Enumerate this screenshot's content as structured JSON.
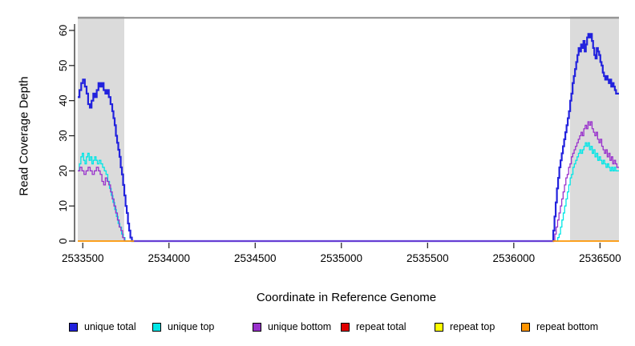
{
  "chart_data": {
    "type": "line",
    "title": "",
    "xlabel": "Coordinate in Reference Genome",
    "ylabel": "Read Coverage Depth",
    "xlim": [
      2533471,
      2536610
    ],
    "ylim": [
      0,
      64
    ],
    "x_ticks": [
      2533500,
      2534000,
      2534500,
      2535000,
      2535500,
      2536000,
      2536500
    ],
    "y_ticks": [
      0,
      10,
      20,
      30,
      40,
      50,
      60
    ],
    "grid": "off",
    "legend_position": "bottom",
    "shaded_regions": {
      "color": "#DBDBDB",
      "y_top_value": 64,
      "regions": [
        {
          "x0": 2533471,
          "x1": 2533741
        },
        {
          "x0": 2536327,
          "x1": 2536610
        }
      ]
    },
    "boundary_line": {
      "y_value": 63.6,
      "color": "#8C8C8C",
      "width": 2
    },
    "series": [
      {
        "name": "unique total",
        "color": "#2222DD",
        "width": 2.2,
        "segments": [
          [
            [
              2533471,
              41
            ],
            [
              2533481,
              43
            ],
            [
              2533491,
              45
            ],
            [
              2533501,
              46
            ],
            [
              2533512,
              44
            ],
            [
              2533522,
              42
            ],
            [
              2533531,
              39
            ],
            [
              2533541,
              38
            ],
            [
              2533551,
              40
            ],
            [
              2533561,
              42
            ],
            [
              2533571,
              41
            ],
            [
              2533581,
              43
            ],
            [
              2533591,
              45
            ],
            [
              2533601,
              44
            ],
            [
              2533611,
              45
            ],
            [
              2533621,
              43
            ],
            [
              2533631,
              42
            ],
            [
              2533641,
              43
            ],
            [
              2533651,
              41
            ],
            [
              2533661,
              39
            ],
            [
              2533671,
              37
            ],
            [
              2533678,
              35
            ],
            [
              2533685,
              33
            ],
            [
              2533692,
              30
            ],
            [
              2533699,
              28
            ],
            [
              2533706,
              26
            ],
            [
              2533713,
              24
            ],
            [
              2533720,
              21
            ],
            [
              2533727,
              19
            ],
            [
              2533734,
              16
            ],
            [
              2533741,
              13
            ],
            [
              2533748,
              10
            ],
            [
              2533755,
              8
            ],
            [
              2533762,
              5
            ],
            [
              2533769,
              3
            ],
            [
              2533776,
              1
            ],
            [
              2533785,
              0
            ],
            [
              2536226,
              0
            ],
            [
              2536229,
              3
            ],
            [
              2536236,
              7
            ],
            [
              2536243,
              11
            ],
            [
              2536250,
              15
            ],
            [
              2536257,
              18
            ],
            [
              2536264,
              21
            ],
            [
              2536271,
              23
            ],
            [
              2536278,
              25
            ],
            [
              2536285,
              27
            ],
            [
              2536292,
              29
            ],
            [
              2536299,
              31
            ],
            [
              2536306,
              33
            ],
            [
              2536313,
              35
            ],
            [
              2536320,
              37
            ],
            [
              2536327,
              40
            ],
            [
              2536334,
              42
            ],
            [
              2536341,
              45
            ],
            [
              2536348,
              47
            ],
            [
              2536355,
              49
            ],
            [
              2536362,
              51
            ],
            [
              2536369,
              53
            ],
            [
              2536376,
              55
            ],
            [
              2536383,
              54
            ],
            [
              2536390,
              56
            ],
            [
              2536397,
              55
            ],
            [
              2536404,
              57
            ],
            [
              2536411,
              54
            ],
            [
              2536418,
              56
            ],
            [
              2536425,
              58
            ],
            [
              2536432,
              59
            ],
            [
              2536439,
              58
            ],
            [
              2536446,
              59
            ],
            [
              2536453,
              57
            ],
            [
              2536460,
              55
            ],
            [
              2536467,
              53
            ],
            [
              2536474,
              52
            ],
            [
              2536481,
              55
            ],
            [
              2536488,
              54
            ],
            [
              2536495,
              53
            ],
            [
              2536502,
              51
            ],
            [
              2536509,
              50
            ],
            [
              2536516,
              48
            ],
            [
              2536523,
              47
            ],
            [
              2536530,
              46
            ],
            [
              2536537,
              47
            ],
            [
              2536544,
              46
            ],
            [
              2536551,
              45
            ],
            [
              2536558,
              46
            ],
            [
              2536565,
              44
            ],
            [
              2536572,
              45
            ],
            [
              2536579,
              44
            ],
            [
              2536586,
              43
            ],
            [
              2536593,
              42
            ],
            [
              2536610,
              42
            ]
          ]
        ]
      },
      {
        "name": "unique top",
        "color": "#00E6E6",
        "width": 1.3,
        "segments": [
          [
            [
              2533471,
              20
            ],
            [
              2533481,
              22
            ],
            [
              2533489,
              24
            ],
            [
              2533497,
              25
            ],
            [
              2533505,
              23
            ],
            [
              2533513,
              22
            ],
            [
              2533521,
              24
            ],
            [
              2533529,
              25
            ],
            [
              2533537,
              23
            ],
            [
              2533545,
              24
            ],
            [
              2533553,
              22
            ],
            [
              2533561,
              23
            ],
            [
              2533569,
              24
            ],
            [
              2533577,
              23
            ],
            [
              2533585,
              22
            ],
            [
              2533595,
              23
            ],
            [
              2533605,
              22
            ],
            [
              2533615,
              21
            ],
            [
              2533625,
              20
            ],
            [
              2533635,
              19
            ],
            [
              2533645,
              17
            ],
            [
              2533655,
              15
            ],
            [
              2533665,
              13
            ],
            [
              2533675,
              11
            ],
            [
              2533685,
              9
            ],
            [
              2533695,
              7
            ],
            [
              2533705,
              5
            ],
            [
              2533715,
              4
            ],
            [
              2533725,
              2
            ],
            [
              2533735,
              1
            ],
            [
              2533745,
              0
            ],
            [
              2536248,
              0
            ],
            [
              2536255,
              1
            ],
            [
              2536263,
              2
            ],
            [
              2536271,
              4
            ],
            [
              2536279,
              6
            ],
            [
              2536287,
              8
            ],
            [
              2536295,
              10
            ],
            [
              2536303,
              12
            ],
            [
              2536311,
              14
            ],
            [
              2536319,
              16
            ],
            [
              2536327,
              18
            ],
            [
              2536335,
              19
            ],
            [
              2536343,
              21
            ],
            [
              2536351,
              22
            ],
            [
              2536359,
              23
            ],
            [
              2536367,
              24
            ],
            [
              2536375,
              25
            ],
            [
              2536383,
              26
            ],
            [
              2536391,
              25
            ],
            [
              2536399,
              26
            ],
            [
              2536407,
              27
            ],
            [
              2536415,
              28
            ],
            [
              2536423,
              27
            ],
            [
              2536431,
              28
            ],
            [
              2536439,
              26
            ],
            [
              2536447,
              27
            ],
            [
              2536455,
              25
            ],
            [
              2536463,
              26
            ],
            [
              2536471,
              24
            ],
            [
              2536479,
              25
            ],
            [
              2536487,
              23
            ],
            [
              2536495,
              24
            ],
            [
              2536503,
              23
            ],
            [
              2536511,
              22
            ],
            [
              2536519,
              23
            ],
            [
              2536527,
              22
            ],
            [
              2536535,
              21
            ],
            [
              2536543,
              22
            ],
            [
              2536551,
              21
            ],
            [
              2536559,
              20
            ],
            [
              2536567,
              21
            ],
            [
              2536575,
              20
            ],
            [
              2536583,
              21
            ],
            [
              2536591,
              20
            ],
            [
              2536610,
              20
            ]
          ]
        ]
      },
      {
        "name": "unique bottom",
        "color": "#9932CC",
        "width": 1.3,
        "segments": [
          [
            [
              2533471,
              20
            ],
            [
              2533483,
              21
            ],
            [
              2533495,
              20
            ],
            [
              2533507,
              19
            ],
            [
              2533519,
              20
            ],
            [
              2533531,
              21
            ],
            [
              2533543,
              20
            ],
            [
              2533555,
              19
            ],
            [
              2533567,
              20
            ],
            [
              2533579,
              21
            ],
            [
              2533591,
              20
            ],
            [
              2533601,
              19
            ],
            [
              2533611,
              17
            ],
            [
              2533621,
              16
            ],
            [
              2533631,
              18
            ],
            [
              2533641,
              17
            ],
            [
              2533651,
              16
            ],
            [
              2533661,
              14
            ],
            [
              2533671,
              12
            ],
            [
              2533681,
              10
            ],
            [
              2533691,
              8
            ],
            [
              2533701,
              6
            ],
            [
              2533711,
              4
            ],
            [
              2533721,
              3
            ],
            [
              2533731,
              1
            ],
            [
              2533741,
              0
            ],
            [
              2536230,
              0
            ],
            [
              2536238,
              2
            ],
            [
              2536246,
              4
            ],
            [
              2536254,
              6
            ],
            [
              2536262,
              8
            ],
            [
              2536270,
              10
            ],
            [
              2536278,
              12
            ],
            [
              2536286,
              14
            ],
            [
              2536294,
              16
            ],
            [
              2536302,
              18
            ],
            [
              2536310,
              19
            ],
            [
              2536318,
              21
            ],
            [
              2536326,
              22
            ],
            [
              2536334,
              24
            ],
            [
              2536342,
              25
            ],
            [
              2536350,
              26
            ],
            [
              2536358,
              27
            ],
            [
              2536366,
              28
            ],
            [
              2536374,
              29
            ],
            [
              2536382,
              30
            ],
            [
              2536390,
              31
            ],
            [
              2536398,
              30
            ],
            [
              2536406,
              32
            ],
            [
              2536414,
              33
            ],
            [
              2536422,
              32
            ],
            [
              2536430,
              34
            ],
            [
              2536438,
              33
            ],
            [
              2536446,
              34
            ],
            [
              2536454,
              32
            ],
            [
              2536462,
              31
            ],
            [
              2536470,
              30
            ],
            [
              2536478,
              31
            ],
            [
              2536486,
              29
            ],
            [
              2536494,
              28
            ],
            [
              2536502,
              29
            ],
            [
              2536510,
              27
            ],
            [
              2536518,
              26
            ],
            [
              2536526,
              25
            ],
            [
              2536534,
              26
            ],
            [
              2536542,
              24
            ],
            [
              2536550,
              25
            ],
            [
              2536558,
              23
            ],
            [
              2536566,
              24
            ],
            [
              2536574,
              22
            ],
            [
              2536582,
              23
            ],
            [
              2536590,
              22
            ],
            [
              2536598,
              21
            ],
            [
              2536610,
              21
            ]
          ]
        ]
      },
      {
        "name": "repeat total",
        "color": "#E00000",
        "width": 1.3,
        "segments": [
          [
            [
              2533471,
              0
            ],
            [
              2533797,
              0
            ]
          ],
          [
            [
              2536226,
              0
            ],
            [
              2536610,
              0
            ]
          ]
        ]
      },
      {
        "name": "repeat top",
        "color": "#FFFF00",
        "width": 1.3,
        "segments": [
          [
            [
              2533471,
              0
            ],
            [
              2533797,
              0
            ]
          ],
          [
            [
              2536226,
              0
            ],
            [
              2536610,
              0
            ]
          ]
        ]
      },
      {
        "name": "repeat bottom",
        "color": "#FF9500",
        "width": 1.6,
        "segments": [
          [
            [
              2533471,
              0
            ],
            [
              2533797,
              0
            ]
          ],
          [
            [
              2536226,
              0
            ],
            [
              2536610,
              0
            ]
          ]
        ]
      }
    ]
  }
}
